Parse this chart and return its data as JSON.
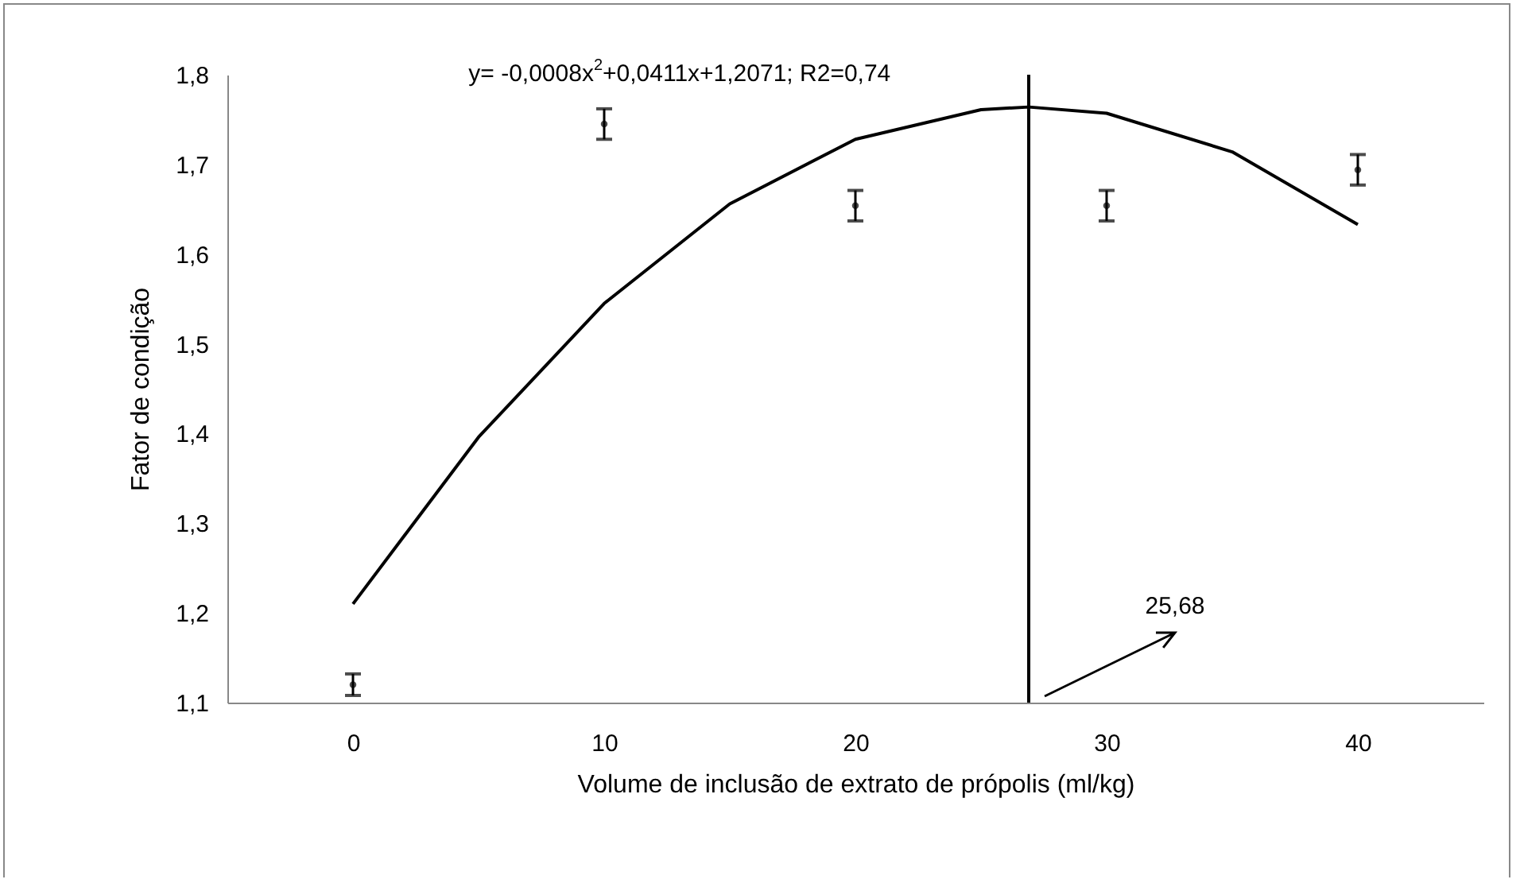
{
  "chart_data": {
    "type": "scatter",
    "xlabel": "Volume de inclusão de extrato de própolis (ml/kg)",
    "ylabel": "Fator de condição",
    "xlim": [
      -5,
      45
    ],
    "xticks": [
      0,
      10,
      20,
      30,
      40
    ],
    "ylim": [
      1.1,
      1.8
    ],
    "yticks": [
      {
        "value": 1.1,
        "label": "1,1"
      },
      {
        "value": 1.2,
        "label": "1,2"
      },
      {
        "value": 1.3,
        "label": "1,3"
      },
      {
        "value": 1.4,
        "label": "1,4"
      },
      {
        "value": 1.5,
        "label": "1,5"
      },
      {
        "value": 1.6,
        "label": "1,6"
      },
      {
        "value": 1.7,
        "label": "1,7"
      },
      {
        "value": 1.8,
        "label": "1,8"
      }
    ],
    "grid": false,
    "series": [
      {
        "color": "#000000",
        "x": [
          0,
          10,
          20,
          30,
          40
        ],
        "values": [
          1.12,
          1.745,
          1.654,
          1.654,
          1.694
        ],
        "errors": [
          0.012,
          0.017,
          0.017,
          0.017,
          0.017
        ]
      },
      {
        "type": "line",
        "color": "#000000",
        "x": [
          0,
          5,
          10,
          15,
          20,
          25,
          26.9,
          30,
          35,
          40
        ],
        "values": [
          1.21,
          1.396,
          1.545,
          1.656,
          1.728,
          1.761,
          1.764,
          1.757,
          1.714,
          1.633
        ]
      }
    ],
    "ref_lines": [
      {
        "axis": "x",
        "value": 26.9,
        "color": "#000000"
      }
    ],
    "annotations": [
      "y= -0,0008x$^{2}$+0,0411x+1,2071; R2=0,74",
      "25,68"
    ]
  }
}
